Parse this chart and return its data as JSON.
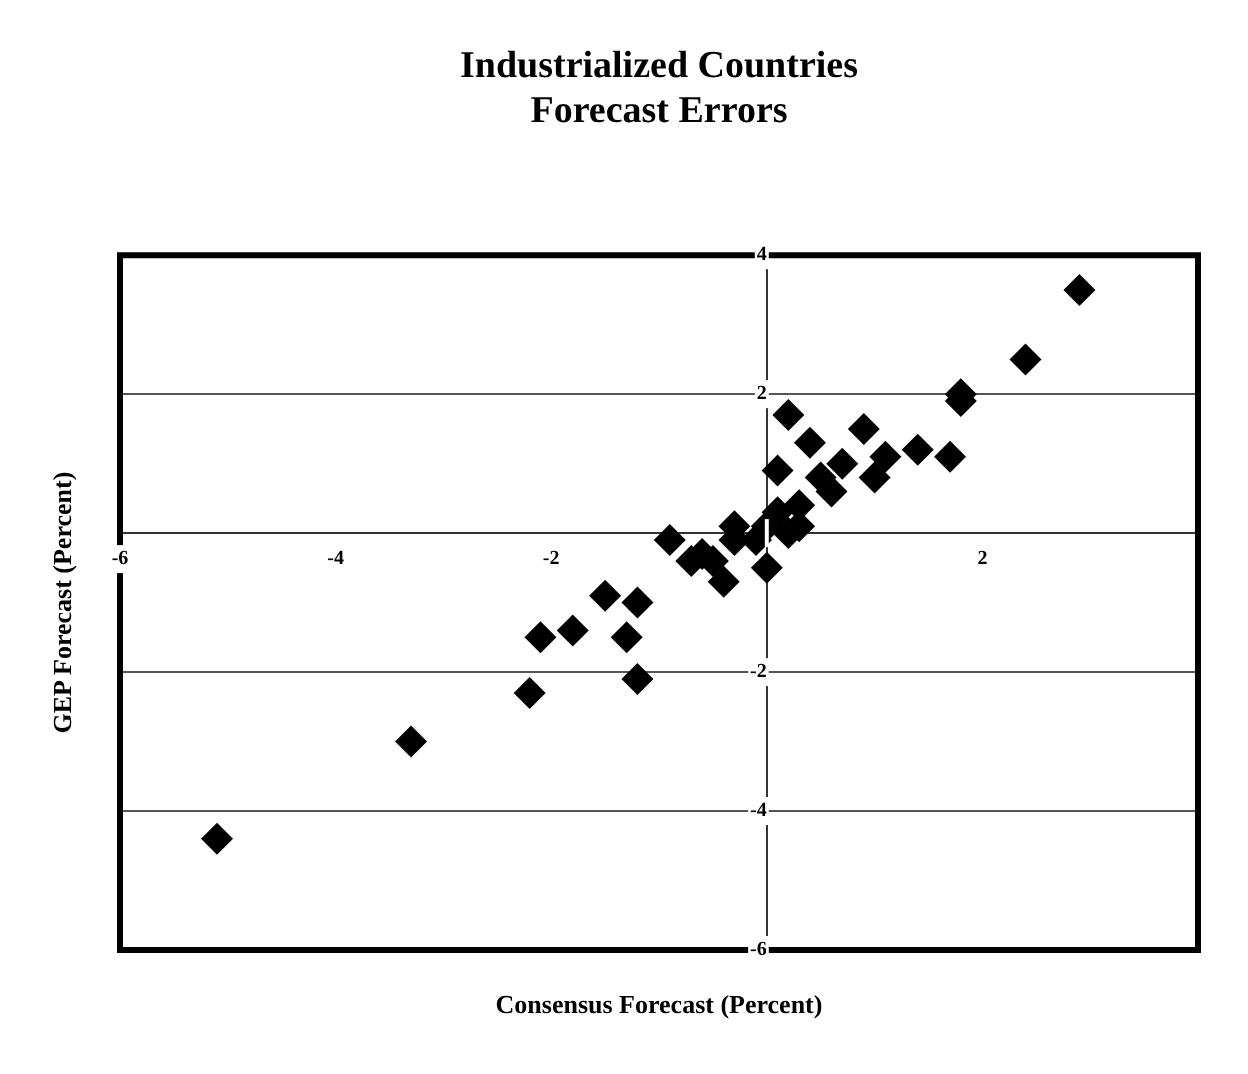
{
  "chart_data": {
    "type": "scatter",
    "title": "Industrialized Countries\nForecast Errors",
    "xlabel": "Consensus Forecast (Percent)",
    "ylabel": "GEP Forecast (Percent)",
    "series": [
      {
        "color": "#000000",
        "x": [
          2.9,
          2.4,
          1.8,
          1.8,
          0.2,
          0.9,
          0.4,
          1.4,
          1.7,
          1.1,
          1.0,
          0.7,
          0.1,
          0.6,
          0.5,
          0.3,
          0.1,
          0.0,
          -0.1,
          -0.3,
          -0.3,
          -0.5,
          -0.6,
          -0.7,
          -0.9,
          -0.4,
          0.0,
          0.3,
          0.2,
          -1.5,
          -1.2,
          -1.8,
          -2.1,
          -1.3,
          -1.2,
          -2.2,
          -3.3,
          -5.1
        ],
        "values": [
          3.5,
          2.5,
          2.0,
          1.9,
          1.7,
          1.5,
          1.3,
          1.2,
          1.1,
          1.1,
          0.8,
          1.0,
          0.9,
          0.6,
          0.8,
          0.4,
          0.3,
          0.1,
          -0.1,
          0.1,
          -0.1,
          -0.4,
          -0.3,
          -0.4,
          -0.1,
          -0.7,
          -0.5,
          0.1,
          0.0,
          -0.9,
          -1.0,
          -1.4,
          -1.5,
          -1.5,
          -2.1,
          -2.3,
          -3.0,
          -4.4
        ]
      }
    ],
    "xlim": [
      -6,
      4
    ],
    "ylim": [
      -6,
      4
    ],
    "xticks": [
      -6,
      -4,
      -2,
      2
    ],
    "yticks": [
      -6,
      -4,
      -2,
      {
        "value": 0,
        "label": null
      },
      2,
      4
    ],
    "grid": "y",
    "marker": "diamond",
    "legend": false
  }
}
